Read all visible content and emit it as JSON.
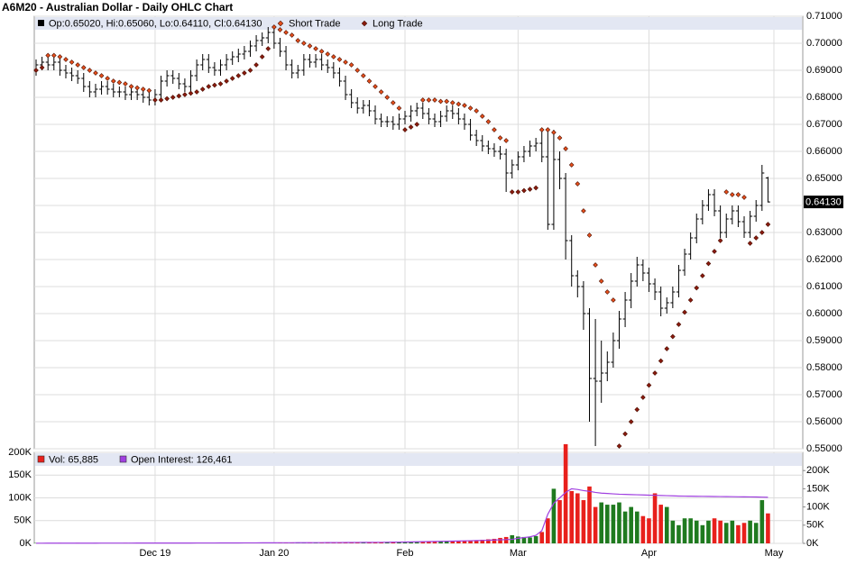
{
  "chart_data": {
    "type": "ohlc",
    "title": "A6M20 - Australian Dollar - Daily OHLC Chart",
    "ohlc_legend": "Op:0.65020, Hi:0.65060, Lo:0.64110, Cl:0.64130",
    "bar_color": "#000000",
    "categories": [
      null,
      null,
      null,
      null,
      null,
      null,
      null,
      null,
      null,
      null,
      null,
      null,
      null,
      null,
      null,
      null,
      null,
      null,
      null,
      null,
      "Dec 19",
      null,
      null,
      null,
      null,
      null,
      null,
      null,
      null,
      null,
      null,
      null,
      null,
      null,
      null,
      null,
      null,
      null,
      null,
      null,
      "Jan 20",
      null,
      null,
      null,
      null,
      null,
      null,
      null,
      null,
      null,
      null,
      null,
      null,
      null,
      null,
      null,
      null,
      null,
      null,
      null,
      null,
      null,
      "Feb",
      null,
      null,
      null,
      null,
      null,
      null,
      null,
      null,
      null,
      null,
      null,
      null,
      null,
      null,
      null,
      null,
      null,
      null,
      "Mar",
      null,
      null,
      null,
      null,
      null,
      null,
      null,
      null,
      null,
      null,
      null,
      null,
      null,
      null,
      null,
      null,
      null,
      null,
      null,
      null,
      null,
      "Apr",
      null,
      null,
      null,
      null,
      null,
      null,
      null,
      null,
      null,
      null,
      null,
      null,
      null,
      null,
      null,
      null,
      null,
      null,
      null,
      null,
      "May"
    ],
    "open": [
      0.69,
      0.692,
      0.693,
      0.692,
      0.693,
      0.69,
      0.689,
      0.688,
      0.687,
      0.684,
      0.682,
      0.683,
      0.684,
      0.683,
      0.682,
      0.682,
      0.681,
      0.682,
      0.681,
      0.68,
      0.679,
      0.681,
      0.686,
      0.688,
      0.687,
      0.685,
      0.684,
      0.688,
      0.692,
      0.694,
      0.691,
      0.69,
      0.692,
      0.694,
      0.695,
      0.696,
      0.697,
      0.699,
      0.701,
      0.702,
      0.704,
      0.7,
      0.697,
      0.692,
      0.689,
      0.69,
      0.694,
      0.693,
      0.694,
      0.692,
      0.691,
      0.689,
      0.686,
      0.681,
      0.678,
      0.676,
      0.677,
      0.675,
      0.672,
      0.671,
      0.671,
      0.67,
      0.672,
      0.673,
      0.675,
      0.676,
      0.674,
      0.672,
      0.671,
      0.673,
      0.675,
      0.674,
      0.672,
      0.67,
      0.666,
      0.664,
      0.662,
      0.661,
      0.66,
      0.659,
      0.652,
      0.655,
      0.658,
      0.66,
      0.662,
      0.663,
      0.658,
      0.633,
      0.657,
      0.65,
      0.627,
      0.614,
      0.61,
      0.6,
      0.576,
      0.575,
      0.578,
      0.582,
      0.59,
      0.598,
      0.605,
      0.612,
      0.618,
      0.615,
      0.611,
      0.608,
      0.602,
      0.604,
      0.608,
      0.616,
      0.622,
      0.628,
      0.635,
      0.64,
      0.644,
      0.638,
      0.63,
      0.635,
      0.638,
      0.634,
      0.63,
      0.636,
      0.64,
      0.6502,
      null
    ],
    "high": [
      0.694,
      0.695,
      0.695,
      0.695,
      0.695,
      0.692,
      0.691,
      0.69,
      0.689,
      0.686,
      0.685,
      0.686,
      0.686,
      0.685,
      0.684,
      0.684,
      0.684,
      0.684,
      0.683,
      0.682,
      0.683,
      0.688,
      0.69,
      0.69,
      0.689,
      0.687,
      0.69,
      0.694,
      0.696,
      0.696,
      0.693,
      0.694,
      0.696,
      0.697,
      0.698,
      0.699,
      0.701,
      0.703,
      0.704,
      0.706,
      0.706,
      0.702,
      0.699,
      0.694,
      0.692,
      0.696,
      0.696,
      0.696,
      0.696,
      0.694,
      0.693,
      0.691,
      0.688,
      0.683,
      0.68,
      0.679,
      0.679,
      0.677,
      0.674,
      0.673,
      0.673,
      0.674,
      0.675,
      0.677,
      0.678,
      0.678,
      0.676,
      0.674,
      0.675,
      0.677,
      0.677,
      0.676,
      0.674,
      0.672,
      0.668,
      0.666,
      0.664,
      0.663,
      0.662,
      0.661,
      0.657,
      0.66,
      0.662,
      0.664,
      0.665,
      0.668,
      0.668,
      0.668,
      0.66,
      0.652,
      0.629,
      0.616,
      0.612,
      0.602,
      0.598,
      0.59,
      0.586,
      0.593,
      0.601,
      0.608,
      0.615,
      0.621,
      0.62,
      0.617,
      0.613,
      0.61,
      0.606,
      0.61,
      0.618,
      0.624,
      0.63,
      0.637,
      0.642,
      0.646,
      0.646,
      0.64,
      0.637,
      0.64,
      0.64,
      0.636,
      0.638,
      0.642,
      0.655,
      0.6506,
      null
    ],
    "low": [
      0.688,
      0.69,
      0.69,
      0.69,
      0.688,
      0.687,
      0.686,
      0.685,
      0.682,
      0.68,
      0.68,
      0.681,
      0.681,
      0.68,
      0.68,
      0.679,
      0.679,
      0.679,
      0.678,
      0.677,
      0.677,
      0.679,
      0.684,
      0.685,
      0.683,
      0.682,
      0.682,
      0.686,
      0.69,
      0.689,
      0.688,
      0.688,
      0.69,
      0.692,
      0.693,
      0.694,
      0.695,
      0.697,
      0.699,
      0.7,
      0.698,
      0.695,
      0.69,
      0.687,
      0.687,
      0.688,
      0.691,
      0.691,
      0.69,
      0.689,
      0.687,
      0.684,
      0.679,
      0.676,
      0.674,
      0.674,
      0.673,
      0.67,
      0.669,
      0.669,
      0.668,
      0.668,
      0.67,
      0.671,
      0.673,
      0.672,
      0.67,
      0.669,
      0.669,
      0.671,
      0.672,
      0.67,
      0.668,
      0.664,
      0.662,
      0.66,
      0.659,
      0.658,
      0.657,
      0.645,
      0.65,
      0.653,
      0.656,
      0.658,
      0.66,
      0.656,
      0.631,
      0.631,
      0.646,
      0.62,
      0.61,
      0.606,
      0.594,
      0.56,
      0.551,
      0.567,
      0.575,
      0.58,
      0.587,
      0.595,
      0.602,
      0.61,
      0.612,
      0.608,
      0.605,
      0.599,
      0.6,
      0.602,
      0.606,
      0.614,
      0.62,
      0.626,
      0.633,
      0.638,
      0.636,
      0.628,
      0.628,
      0.633,
      0.632,
      0.628,
      0.628,
      0.634,
      0.638,
      0.6411,
      null
    ],
    "close": [
      0.692,
      0.693,
      0.692,
      0.693,
      0.69,
      0.689,
      0.688,
      0.687,
      0.684,
      0.682,
      0.683,
      0.684,
      0.683,
      0.682,
      0.682,
      0.681,
      0.682,
      0.681,
      0.68,
      0.679,
      0.681,
      0.686,
      0.688,
      0.687,
      0.685,
      0.684,
      0.688,
      0.692,
      0.694,
      0.691,
      0.69,
      0.692,
      0.694,
      0.695,
      0.696,
      0.697,
      0.699,
      0.701,
      0.702,
      0.704,
      0.7,
      0.697,
      0.692,
      0.689,
      0.69,
      0.694,
      0.693,
      0.694,
      0.692,
      0.691,
      0.689,
      0.686,
      0.681,
      0.678,
      0.676,
      0.677,
      0.675,
      0.672,
      0.671,
      0.671,
      0.67,
      0.672,
      0.673,
      0.675,
      0.676,
      0.674,
      0.672,
      0.671,
      0.673,
      0.675,
      0.674,
      0.672,
      0.67,
      0.666,
      0.664,
      0.662,
      0.661,
      0.66,
      0.659,
      0.652,
      0.655,
      0.658,
      0.66,
      0.662,
      0.663,
      0.658,
      0.633,
      0.657,
      0.65,
      0.627,
      0.614,
      0.61,
      0.6,
      0.576,
      0.575,
      0.578,
      0.582,
      0.59,
      0.598,
      0.605,
      0.612,
      0.618,
      0.615,
      0.611,
      0.608,
      0.602,
      0.604,
      0.608,
      0.616,
      0.622,
      0.628,
      0.635,
      0.64,
      0.644,
      0.638,
      0.63,
      0.635,
      0.638,
      0.634,
      0.63,
      0.636,
      0.64,
      0.652,
      0.6413,
      null
    ],
    "series": [
      {
        "name": "Short Trade",
        "color": "#e8501c",
        "values": [
          null,
          null,
          0.6955,
          0.6955,
          0.695,
          0.694,
          0.693,
          0.692,
          0.691,
          0.69,
          0.689,
          0.688,
          0.687,
          0.686,
          0.6855,
          0.685,
          0.684,
          0.6835,
          0.683,
          0.6825,
          null,
          null,
          null,
          null,
          null,
          null,
          null,
          null,
          null,
          null,
          null,
          null,
          null,
          null,
          null,
          null,
          null,
          null,
          null,
          null,
          0.706,
          0.705,
          0.704,
          0.703,
          0.701,
          0.7,
          0.699,
          0.698,
          0.697,
          0.696,
          0.695,
          0.694,
          0.693,
          0.692,
          0.69,
          0.688,
          0.686,
          0.684,
          0.682,
          0.68,
          0.678,
          0.676,
          null,
          null,
          null,
          0.679,
          0.679,
          0.679,
          0.6785,
          0.6785,
          0.678,
          0.6775,
          0.677,
          0.676,
          0.675,
          0.673,
          0.671,
          0.668,
          0.665,
          0.664,
          null,
          null,
          null,
          null,
          null,
          0.668,
          0.668,
          0.667,
          0.665,
          0.661,
          0.655,
          0.648,
          0.638,
          0.629,
          0.618,
          0.612,
          0.608,
          0.605,
          null,
          null,
          null,
          null,
          null,
          null,
          null,
          null,
          null,
          null,
          null,
          null,
          null,
          null,
          null,
          null,
          null,
          null,
          0.645,
          0.644,
          0.644,
          0.643,
          null,
          null,
          null,
          null,
          null
        ]
      },
      {
        "name": "Long Trade",
        "color": "#8b1a0e",
        "values": [
          0.69,
          0.691,
          null,
          null,
          null,
          null,
          null,
          null,
          null,
          null,
          null,
          null,
          null,
          null,
          null,
          null,
          null,
          null,
          null,
          null,
          0.679,
          0.679,
          0.6795,
          0.68,
          0.6805,
          0.681,
          0.6815,
          0.682,
          0.683,
          0.684,
          0.6845,
          0.685,
          0.686,
          0.687,
          0.688,
          0.689,
          0.69,
          0.692,
          0.695,
          0.698,
          null,
          null,
          null,
          null,
          null,
          null,
          null,
          null,
          null,
          null,
          null,
          null,
          null,
          null,
          null,
          null,
          null,
          null,
          null,
          null,
          null,
          null,
          0.668,
          0.669,
          0.67,
          null,
          null,
          null,
          null,
          null,
          null,
          null,
          null,
          null,
          null,
          null,
          null,
          null,
          null,
          null,
          0.645,
          0.645,
          0.6455,
          0.646,
          0.6465,
          null,
          null,
          null,
          null,
          null,
          null,
          null,
          null,
          null,
          null,
          null,
          null,
          null,
          0.551,
          0.5555,
          0.56,
          0.5645,
          0.569,
          0.5735,
          0.578,
          0.5825,
          0.587,
          0.5915,
          0.596,
          0.6005,
          0.605,
          0.6095,
          0.614,
          0.6185,
          0.623,
          0.627,
          null,
          null,
          null,
          null,
          0.626,
          0.628,
          0.63,
          0.633,
          null
        ]
      }
    ],
    "ylim": [
      0.55,
      0.71
    ],
    "yticks": [
      {
        "value": 0.55,
        "label": "0.55000"
      },
      {
        "value": 0.56,
        "label": "0.56000"
      },
      {
        "value": 0.57,
        "label": "0.57000"
      },
      {
        "value": 0.58,
        "label": "0.58000"
      },
      {
        "value": 0.59,
        "label": "0.59000"
      },
      {
        "value": 0.6,
        "label": "0.60000"
      },
      {
        "value": 0.61,
        "label": "0.61000"
      },
      {
        "value": 0.62,
        "label": "0.62000"
      },
      {
        "value": 0.63,
        "label": "0.63000"
      },
      {
        "value": 0.64,
        "label": "0.64000"
      },
      {
        "value": 0.65,
        "label": "0.65000"
      },
      {
        "value": 0.66,
        "label": "0.66000"
      },
      {
        "value": 0.67,
        "label": "0.67000"
      },
      {
        "value": 0.68,
        "label": "0.68000"
      },
      {
        "value": 0.69,
        "label": "0.69000"
      },
      {
        "value": 0.7,
        "label": "0.70000"
      },
      {
        "value": 0.71,
        "label": "0.71000"
      }
    ],
    "last_price": {
      "value": 0.6413,
      "label": "0.64130"
    },
    "grid": true,
    "volume_panel": {
      "type": "bar",
      "up_color": "#1f7a1f",
      "down_color": "#e8201c",
      "series": [
        {
          "name": "Vol: 65,885",
          "color": "#e8201c",
          "axis": "y",
          "values": [
            800,
            900,
            700,
            1000,
            1100,
            900,
            800,
            1200,
            1000,
            900,
            1100,
            1000,
            900,
            800,
            1000,
            1200,
            1100,
            900,
            1000,
            1300,
            1200,
            1400,
            1100,
            1000,
            900,
            1200,
            1300,
            1100,
            1000,
            1200,
            1400,
            1300,
            1200,
            1500,
            1300,
            1400,
            1600,
            1500,
            1400,
            1700,
            1800,
            1600,
            1900,
            2000,
            1700,
            1800,
            2100,
            1900,
            2000,
            2200,
            2100,
            2300,
            2500,
            2200,
            2400,
            2600,
            2500,
            2700,
            2800,
            3000,
            3200,
            3500,
            3300,
            3800,
            4000,
            3600,
            4200,
            4500,
            4100,
            4800,
            5000,
            5500,
            6000,
            6500,
            7000,
            8000,
            9000,
            10000,
            12000,
            14000,
            18000,
            15000,
            14000,
            13000,
            16000,
            25000,
            55000,
            120000,
            95000,
            218000,
            115000,
            110000,
            95000,
            125000,
            80000,
            90000,
            85000,
            85000,
            90000,
            70000,
            80000,
            70000,
            60000,
            55000,
            110000,
            85000,
            80000,
            50000,
            40000,
            55000,
            55000,
            50000,
            40000,
            50000,
            55000,
            50000,
            45000,
            50000,
            40000,
            45000,
            50000,
            45000,
            95000,
            65885,
            null
          ]
        },
        {
          "name": "Open Interest: 126,461",
          "color": "#a040e0",
          "axis": "y2",
          "type": "line",
          "values": [
            500,
            520,
            540,
            560,
            580,
            600,
            620,
            640,
            660,
            680,
            700,
            720,
            740,
            760,
            780,
            800,
            820,
            840,
            860,
            880,
            900,
            920,
            940,
            960,
            980,
            1000,
            1020,
            1040,
            1060,
            1080,
            1100,
            1150,
            1200,
            1250,
            1300,
            1350,
            1400,
            1450,
            1500,
            1550,
            1600,
            1650,
            1700,
            1750,
            1800,
            1850,
            1900,
            1950,
            2000,
            2100,
            2200,
            2300,
            2400,
            2500,
            2600,
            2700,
            2800,
            2900,
            3000,
            3200,
            3400,
            3600,
            3800,
            4000,
            4300,
            4600,
            4900,
            5200,
            5500,
            5800,
            6100,
            6500,
            6900,
            7300,
            7700,
            8200,
            8700,
            9200,
            9800,
            10400,
            11000,
            14000,
            16000,
            18000,
            22000,
            35000,
            80000,
            110000,
            125000,
            140000,
            150000,
            148000,
            145000,
            143000,
            140000,
            138000,
            137000,
            136000,
            135000,
            134500,
            134000,
            133500,
            133000,
            132500,
            132000,
            131500,
            131000,
            130500,
            130000,
            129800,
            129600,
            129400,
            129200,
            129000,
            128800,
            128600,
            128400,
            128200,
            128000,
            127800,
            127600,
            127400,
            127000,
            126461,
            null
          ]
        }
      ],
      "ylim": [
        0,
        200000
      ],
      "yticks": [
        {
          "value": 0,
          "label": "0K"
        },
        {
          "value": 50000,
          "label": "50K"
        },
        {
          "value": 100000,
          "label": "100K"
        },
        {
          "value": 150000,
          "label": "150K"
        },
        {
          "value": 200000,
          "label": "200K"
        }
      ],
      "y2lim": [
        0,
        250000
      ],
      "y2ticks": [
        {
          "value": 0,
          "label": "0K"
        },
        {
          "value": 50000,
          "label": "50K"
        },
        {
          "value": 100000,
          "label": "100K"
        },
        {
          "value": 150000,
          "label": "150K"
        },
        {
          "value": 200000,
          "label": "200K"
        }
      ]
    }
  }
}
